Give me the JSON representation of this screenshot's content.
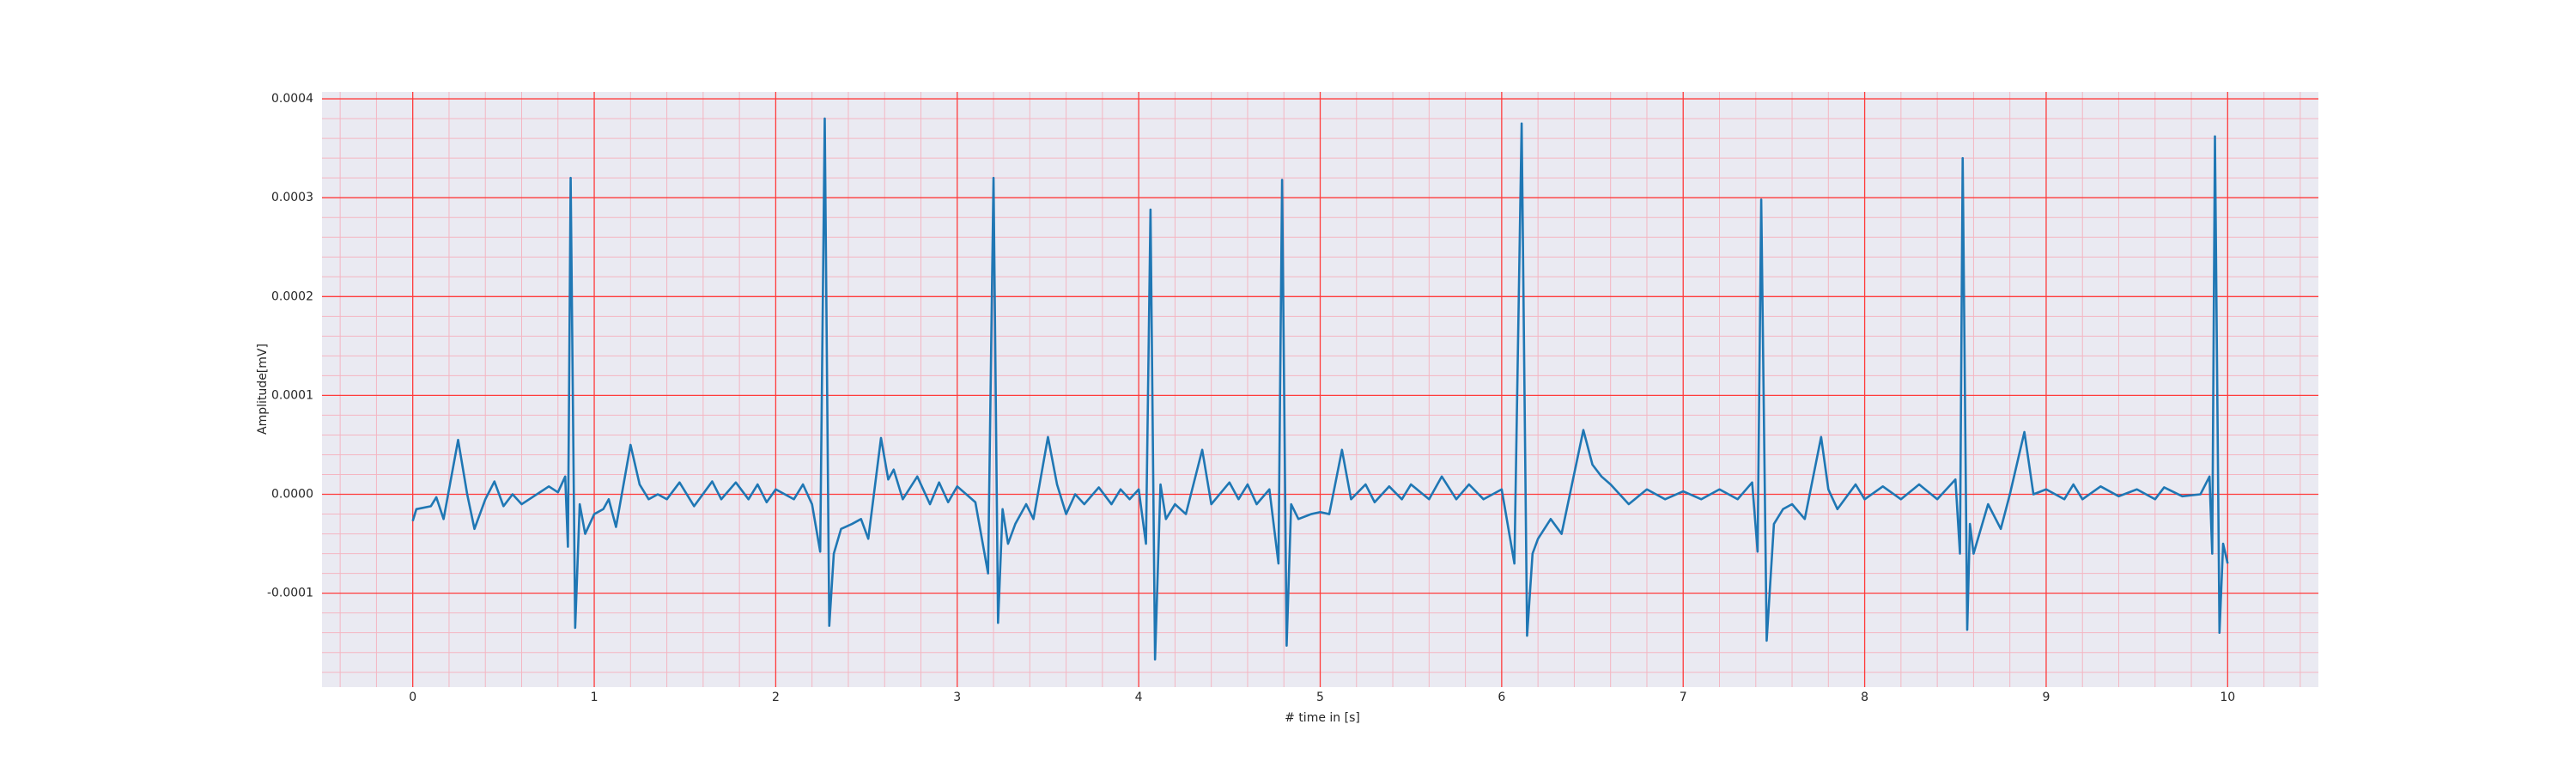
{
  "chart_data": {
    "type": "line",
    "x_label": "# time in [s]",
    "y_label": "Amplitude[mV]",
    "x": [
      0,
      0.02,
      0.1,
      0.13,
      0.17,
      0.25,
      0.3,
      0.34,
      0.4,
      0.45,
      0.5,
      0.55,
      0.6,
      0.75,
      0.8,
      0.84,
      0.855,
      0.87,
      0.895,
      0.92,
      0.95,
      1.0,
      1.05,
      1.08,
      1.12,
      1.2,
      1.25,
      1.3,
      1.35,
      1.4,
      1.47,
      1.55,
      1.65,
      1.7,
      1.78,
      1.85,
      1.9,
      1.95,
      2.0,
      2.1,
      2.15,
      2.2,
      2.245,
      2.27,
      2.295,
      2.32,
      2.36,
      2.42,
      2.47,
      2.51,
      2.58,
      2.62,
      2.65,
      2.7,
      2.78,
      2.85,
      2.9,
      2.95,
      3.0,
      3.05,
      3.1,
      3.17,
      3.2,
      3.225,
      3.25,
      3.28,
      3.32,
      3.38,
      3.42,
      3.5,
      3.55,
      3.6,
      3.65,
      3.7,
      3.78,
      3.85,
      3.9,
      3.95,
      4.0,
      4.04,
      4.065,
      4.09,
      4.12,
      4.15,
      4.2,
      4.26,
      4.35,
      4.4,
      4.5,
      4.55,
      4.6,
      4.65,
      4.72,
      4.77,
      4.79,
      4.815,
      4.84,
      4.88,
      4.95,
      5.0,
      5.05,
      5.12,
      5.17,
      5.25,
      5.3,
      5.38,
      5.45,
      5.5,
      5.6,
      5.67,
      5.75,
      5.82,
      5.9,
      6.0,
      6.07,
      6.11,
      6.14,
      6.17,
      6.2,
      6.27,
      6.33,
      6.45,
      6.5,
      6.55,
      6.6,
      6.7,
      6.8,
      6.9,
      7.0,
      7.1,
      7.2,
      7.3,
      7.38,
      7.41,
      7.43,
      7.46,
      7.5,
      7.55,
      7.6,
      7.67,
      7.76,
      7.8,
      7.85,
      7.95,
      8.0,
      8.1,
      8.2,
      8.3,
      8.4,
      8.5,
      8.525,
      8.54,
      8.565,
      8.58,
      8.6,
      8.68,
      8.75,
      8.8,
      8.88,
      8.93,
      9.0,
      9.1,
      9.15,
      9.2,
      9.3,
      9.4,
      9.5,
      9.6,
      9.65,
      9.75,
      9.85,
      9.9,
      9.915,
      9.93,
      9.955,
      9.975,
      10.0
    ],
    "series": [
      {
        "color": "#1f77b4",
        "values": [
          -2.7e-05,
          -1.5e-05,
          -1.2e-05,
          -3e-06,
          -2.5e-05,
          5.5e-05,
          0,
          -3.5e-05,
          -5e-06,
          1.3e-05,
          -1.2e-05,
          0,
          -1e-05,
          8e-06,
          2e-06,
          1.8e-05,
          -5.3e-05,
          0.00032,
          -0.000135,
          -1e-05,
          -4e-05,
          -2e-05,
          -1.5e-05,
          -5e-06,
          -3.3e-05,
          5e-05,
          1e-05,
          -5e-06,
          0,
          -5e-06,
          1.2e-05,
          -1.2e-05,
          1.3e-05,
          -5e-06,
          1.2e-05,
          -5e-06,
          1e-05,
          -8e-06,
          5e-06,
          -5e-06,
          1e-05,
          -1e-05,
          -5.8e-05,
          0.00038,
          -0.000133,
          -6e-05,
          -3.5e-05,
          -3e-05,
          -2.5e-05,
          -4.5e-05,
          5.7e-05,
          1.5e-05,
          2.5e-05,
          -5e-06,
          1.8e-05,
          -1e-05,
          1.2e-05,
          -8e-06,
          8e-06,
          0,
          -8e-06,
          -8e-05,
          0.00032,
          -0.00013,
          -1.5e-05,
          -5e-05,
          -3e-05,
          -1e-05,
          -2.5e-05,
          5.8e-05,
          1e-05,
          -2e-05,
          0,
          -1e-05,
          7e-06,
          -1e-05,
          5e-06,
          -5e-06,
          5e-06,
          -5e-05,
          0.000288,
          -0.000167,
          1e-05,
          -2.5e-05,
          -1e-05,
          -2e-05,
          4.5e-05,
          -1e-05,
          1.2e-05,
          -5e-06,
          1e-05,
          -1e-05,
          5e-06,
          -7e-05,
          0.000318,
          -0.000153,
          -1e-05,
          -2.5e-05,
          -2e-05,
          -1.8e-05,
          -2e-05,
          4.5e-05,
          -5e-06,
          1e-05,
          -8e-06,
          8e-06,
          -5e-06,
          1e-05,
          -5e-06,
          1.8e-05,
          -5e-06,
          1e-05,
          -5e-06,
          5e-06,
          -7e-05,
          0.000375,
          -0.000143,
          -6e-05,
          -4.5e-05,
          -2.5e-05,
          -4e-05,
          6.5e-05,
          3e-05,
          1.8e-05,
          1e-05,
          -1e-05,
          5e-06,
          -5e-06,
          3e-06,
          -5e-06,
          5e-06,
          -5e-06,
          1.2e-05,
          -5.8e-05,
          0.000298,
          -0.000148,
          -3e-05,
          -1.5e-05,
          -1e-05,
          -2.5e-05,
          5.8e-05,
          5e-06,
          -1.5e-05,
          1e-05,
          -5e-06,
          8e-06,
          -5e-06,
          1e-05,
          -5e-06,
          1.5e-05,
          -6e-05,
          0.00034,
          -0.000137,
          -3e-05,
          -6e-05,
          -1e-05,
          -3.5e-05,
          0,
          6.3e-05,
          0,
          5e-06,
          -5e-06,
          1e-05,
          -5e-06,
          8e-06,
          -2e-06,
          5e-06,
          -5e-06,
          7e-06,
          -2e-06,
          0,
          1.8e-05,
          -6e-05,
          0.000362,
          -0.00014,
          -5e-05,
          -7e-05
        ]
      }
    ],
    "xlim": [
      -0.5,
      10.5
    ],
    "ylim": [
      -0.000195,
      0.000407
    ],
    "xticks": [
      0,
      1,
      2,
      3,
      4,
      5,
      6,
      7,
      8,
      9,
      10
    ],
    "yticks": [
      {
        "value": -0.0001,
        "label": "-0.0001"
      },
      {
        "value": 0,
        "label": "0.0000"
      },
      {
        "value": 0.0001,
        "label": "0.0001"
      },
      {
        "value": 0.0002,
        "label": "0.0002"
      },
      {
        "value": 0.0003,
        "label": "0.0003"
      },
      {
        "value": 0.0004,
        "label": "0.0004"
      }
    ],
    "grid": true,
    "grid_color": "#ff3b3b",
    "minor_grid": true,
    "minor_divisions": 5,
    "minor_grid_color": "#f4b6c2"
  }
}
